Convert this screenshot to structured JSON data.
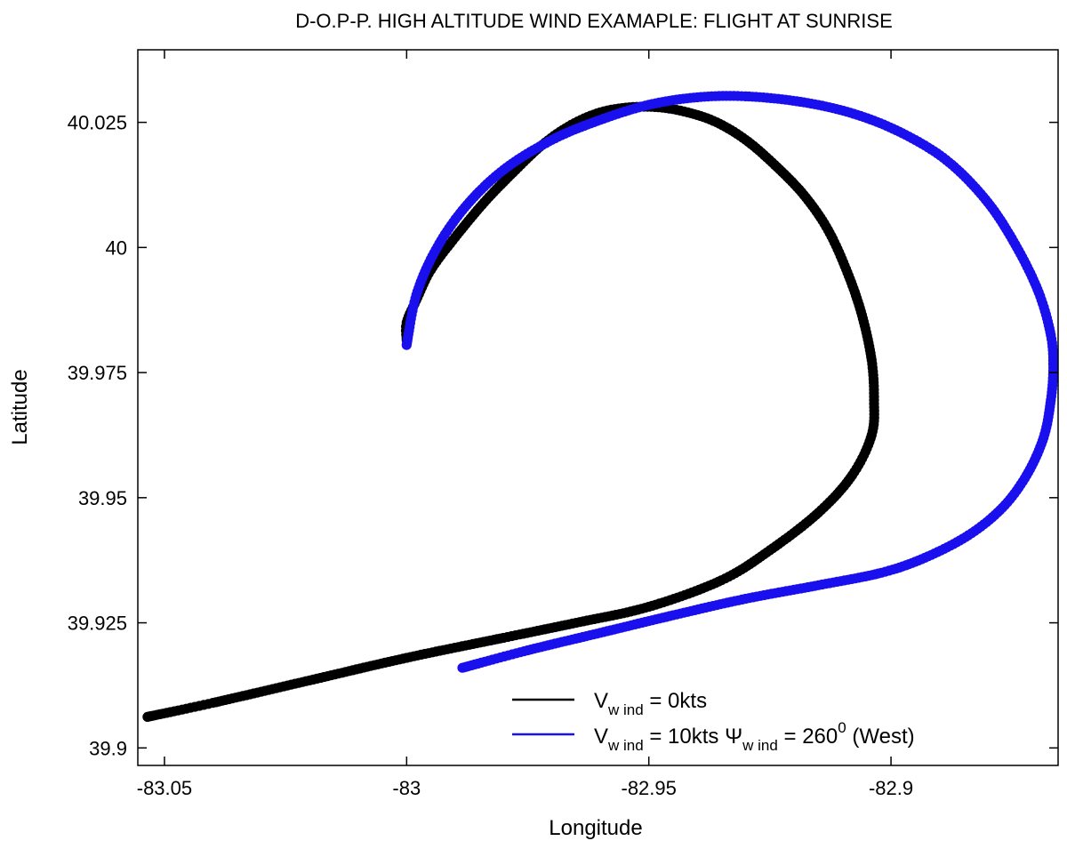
{
  "chart_data": {
    "type": "scatter",
    "title": "D-O.P-P. HIGH ALTITUDE WIND EXAMAPLE: FLIGHT AT SUNRISE",
    "xlabel": "Longitude",
    "ylabel": "Latitude",
    "xlim": [
      -83.0555,
      -82.8655
    ],
    "ylim": [
      39.8965,
      40.0395
    ],
    "xticks": [
      -83.05,
      -83,
      -82.95,
      -82.9
    ],
    "xtick_labels": [
      "-83.05",
      "-83",
      "-82.95",
      "-82.9"
    ],
    "yticks": [
      39.9,
      39.925,
      39.95,
      39.975,
      40,
      40.025
    ],
    "ytick_labels": [
      "39.9",
      "39.925",
      "39.95",
      "39.975",
      "40",
      "40.025"
    ],
    "grid": false,
    "legend_position": "bottom-right",
    "legend": {
      "entry1": {
        "main": "V",
        "sub": "w ind",
        "rest": " = 0kts"
      },
      "entry2": {
        "main": "V",
        "sub": "w ind",
        "rest1": " = 10kts ",
        "psi": "Ψ",
        "sub2": "w ind",
        "rest2": " = 260",
        "sup": "0",
        "rest3": " (West)"
      }
    },
    "series": [
      {
        "color": "#000000",
        "x": [
          -83.0535,
          -83.04,
          -83.02,
          -83.0,
          -82.98,
          -82.965,
          -82.95,
          -82.935,
          -82.925,
          -82.915,
          -82.908,
          -82.904,
          -82.9035,
          -82.904,
          -82.906,
          -82.909,
          -82.913,
          -82.918,
          -82.924,
          -82.93,
          -82.936,
          -82.942,
          -82.948,
          -82.954,
          -82.96,
          -82.966,
          -82.972,
          -82.978,
          -82.984,
          -82.99,
          -82.995,
          -82.998,
          -83.0,
          -83.0
        ],
        "y": [
          39.9062,
          39.909,
          39.9135,
          39.918,
          39.922,
          39.925,
          39.9282,
          39.9335,
          39.9395,
          39.947,
          39.9545,
          39.9625,
          39.9695,
          39.9775,
          39.9865,
          39.995,
          40.0035,
          40.0105,
          40.0165,
          40.0215,
          40.025,
          40.027,
          40.028,
          40.028,
          40.027,
          40.0245,
          40.0205,
          40.015,
          40.009,
          40.002,
          39.9955,
          39.9895,
          39.985,
          39.9815
        ]
      },
      {
        "color": "#1a10ee",
        "x": [
          -82.9885,
          -82.975,
          -82.96,
          -82.945,
          -82.93,
          -82.915,
          -82.902,
          -82.893,
          -82.884,
          -82.877,
          -82.872,
          -82.8685,
          -82.867,
          -82.8665,
          -82.867,
          -82.8695,
          -82.874,
          -82.88,
          -82.888,
          -82.897,
          -82.907,
          -82.918,
          -82.93,
          -82.94,
          -82.95,
          -82.96,
          -82.97,
          -82.98,
          -82.988,
          -82.994,
          -82.998,
          -83.0
        ],
        "y": [
          39.916,
          39.9195,
          39.923,
          39.9265,
          39.9298,
          39.9325,
          39.935,
          39.938,
          39.9425,
          39.948,
          39.9545,
          39.962,
          39.9695,
          39.976,
          39.9825,
          39.991,
          40.0,
          40.009,
          40.017,
          40.0225,
          40.0265,
          40.029,
          40.0302,
          40.03,
          40.0285,
          40.0255,
          40.0215,
          40.0155,
          40.008,
          39.9995,
          39.9905,
          39.9805
        ]
      }
    ]
  }
}
